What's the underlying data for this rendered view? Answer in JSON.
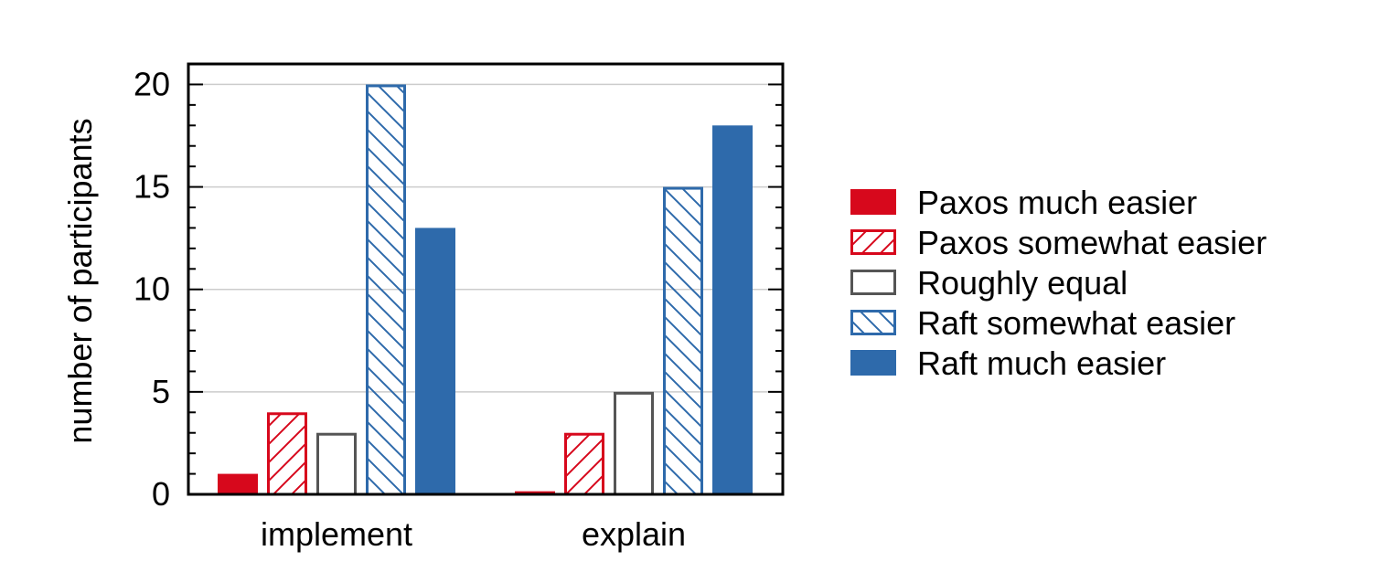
{
  "chart_data": {
    "type": "bar",
    "categories": [
      "implement",
      "explain"
    ],
    "ylabel": "number of participants",
    "xlabel": "",
    "ylim": [
      0,
      21
    ],
    "yticks": [
      0,
      5,
      10,
      15,
      20
    ],
    "grid": true,
    "legend_placement": "right",
    "series": [
      {
        "name": "Paxos much easier",
        "values": [
          1,
          0.15
        ],
        "color": "#d7081c",
        "style": "solid"
      },
      {
        "name": "Paxos somewhat easier",
        "values": [
          4,
          3
        ],
        "color": "#d7081c",
        "style": "hatch-forward"
      },
      {
        "name": "Roughly equal",
        "values": [
          3,
          5
        ],
        "color": "#555555",
        "style": "outline"
      },
      {
        "name": "Raft somewhat easier",
        "values": [
          20,
          15
        ],
        "color": "#2e6aab",
        "style": "hatch-back"
      },
      {
        "name": "Raft much easier",
        "values": [
          13,
          18
        ],
        "color": "#2e6aab",
        "style": "solid"
      }
    ]
  }
}
